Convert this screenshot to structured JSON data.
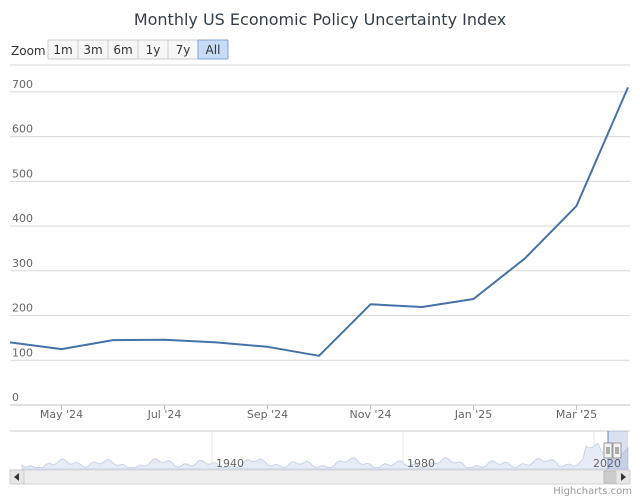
{
  "chart_data": {
    "type": "line",
    "title": "Monthly US Economic Policy Uncertainty Index",
    "xlabel": "",
    "ylabel": "",
    "ylim": [
      0,
      760
    ],
    "grid": true,
    "legend": "none",
    "line_color": "#4572a7",
    "x": [
      "2024-04",
      "2024-05",
      "2024-06",
      "2024-07",
      "2024-08",
      "2024-09",
      "2024-10",
      "2024-11",
      "2024-12",
      "2025-01",
      "2025-02",
      "2025-03",
      "2025-04"
    ],
    "series": [
      {
        "values": [
          140,
          125,
          145,
          146,
          140,
          130,
          110,
          225,
          219,
          237,
          328,
          445,
          710
        ]
      }
    ],
    "y_ticks": [
      "0",
      "100",
      "200",
      "300",
      "400",
      "500",
      "600",
      "700"
    ],
    "x_tick_labels": [
      "May '24",
      "Jul '24",
      "Sep '24",
      "Nov '24",
      "Jan '25",
      "Mar '25"
    ],
    "navigator_labels": [
      "1940",
      "1980",
      "2020"
    ]
  },
  "zoom": {
    "label": "Zoom",
    "buttons": [
      "1m",
      "3m",
      "6m",
      "1y",
      "7y",
      "All"
    ],
    "selected": "All"
  },
  "credits": "Highcharts.com",
  "icons": {
    "scroll_left": "chevron-left-icon",
    "scroll_right": "chevron-right-icon"
  }
}
